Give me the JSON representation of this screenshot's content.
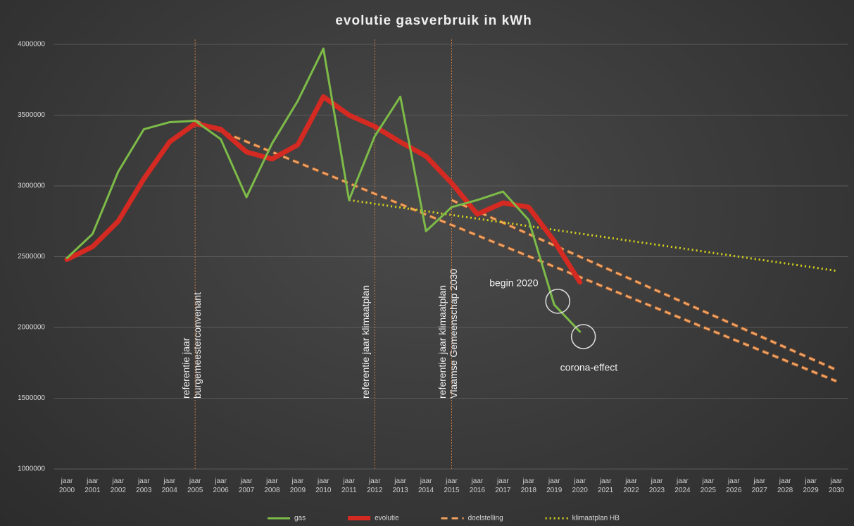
{
  "chart_data": {
    "type": "line",
    "title": "evolutie gasverbruik in kWh",
    "categories": [
      "jaar 2000",
      "jaar 2001",
      "jaar 2002",
      "jaar 2003",
      "jaar 2004",
      "jaar 2005",
      "jaar 2006",
      "jaar 2007",
      "jaar 2008",
      "jaar 2009",
      "jaar 2010",
      "jaar 2011",
      "jaar 2012",
      "jaar 2013",
      "jaar 2014",
      "jaar 2015",
      "jaar 2016",
      "jaar 2017",
      "jaar 2018",
      "jaar 2019",
      "jaar 2020",
      "jaar 2021",
      "jaar 2022",
      "jaar 2023",
      "jaar 2024",
      "jaar 2025",
      "jaar 2026",
      "jaar 2027",
      "jaar 2028",
      "jaar 2029",
      "jaar 2030"
    ],
    "series": [
      {
        "name": "gas",
        "color": "#7dbb48",
        "style": "solid",
        "width": 3,
        "values": [
          2490000,
          2660000,
          3100000,
          3400000,
          3450000,
          3460000,
          3330000,
          2920000,
          3300000,
          3600000,
          3970000,
          2900000,
          3350000,
          3630000,
          2680000,
          2850000,
          2900000,
          2960000,
          2760000,
          2160000,
          1970000,
          null,
          null,
          null,
          null,
          null,
          null,
          null,
          null,
          null,
          null
        ]
      },
      {
        "name": "evolutie",
        "color": "#d42a22",
        "style": "solid",
        "width": 7,
        "values": [
          2480000,
          2570000,
          2750000,
          3050000,
          3310000,
          3440000,
          3400000,
          3240000,
          3190000,
          3290000,
          3630000,
          3500000,
          3420000,
          3310000,
          3210000,
          3020000,
          2800000,
          2880000,
          2850000,
          2610000,
          2320000,
          null,
          null,
          null,
          null,
          null,
          null,
          null,
          null,
          null,
          null
        ]
      },
      {
        "name": "doelstelling",
        "color": "#f0a060",
        "style": "dashed",
        "width": 3,
        "values": [
          null,
          null,
          null,
          null,
          null,
          3460000,
          3386400,
          3312800,
          3239200,
          3165600,
          3092000,
          3018400,
          2944800,
          2871200,
          2797600,
          2724000,
          2650400,
          2576800,
          2503200,
          2429600,
          2356000,
          2282400,
          2208800,
          2135200,
          2061600,
          1988000,
          1914400,
          1840800,
          1767200,
          1693600,
          1620000
        ]
      },
      {
        "name": "doelstelling",
        "color": "#f0a060",
        "style": "dashed",
        "width": 3,
        "values": [
          null,
          null,
          null,
          null,
          null,
          null,
          null,
          null,
          null,
          null,
          null,
          null,
          null,
          null,
          null,
          2900000,
          2820000,
          2740000,
          2660000,
          2580000,
          2500000,
          2420000,
          2340000,
          2260000,
          2180000,
          2100000,
          2020000,
          1940000,
          1860000,
          1780000,
          1700000
        ]
      },
      {
        "name": "klimaatplan HB",
        "color": "#d6d21c",
        "style": "dotted",
        "width": 3,
        "values": [
          null,
          null,
          null,
          null,
          null,
          null,
          null,
          null,
          null,
          null,
          null,
          2900000,
          2873700,
          2847400,
          2821100,
          2794800,
          2768500,
          2742200,
          2715900,
          2689600,
          2663300,
          2637000,
          2610700,
          2584400,
          2558100,
          2531800,
          2505500,
          2479200,
          2452900,
          2426600,
          2400000
        ]
      }
    ],
    "ylim": [
      1000000,
      4000000
    ],
    "yticks": [
      1000000,
      1500000,
      2000000,
      2500000,
      3000000,
      3500000,
      4000000
    ],
    "grid": true,
    "reference_lines": [
      {
        "at": "jaar 2005",
        "lines": [
          "referentie jaar",
          "burgemeesterconvenant"
        ]
      },
      {
        "at": "jaar 2012",
        "lines": [
          "referentie jaar klimaatplan"
        ]
      },
      {
        "at": "jaar 2015",
        "lines": [
          "referentie jaar klimaatplan",
          "Vlaamse Gemeenschap 2030"
        ]
      }
    ],
    "annotations": [
      {
        "text": "begin 2020",
        "at": "jaar 2019"
      },
      {
        "text": "corona-effect",
        "at": "jaar 2020"
      }
    ],
    "legend": "bottom"
  }
}
